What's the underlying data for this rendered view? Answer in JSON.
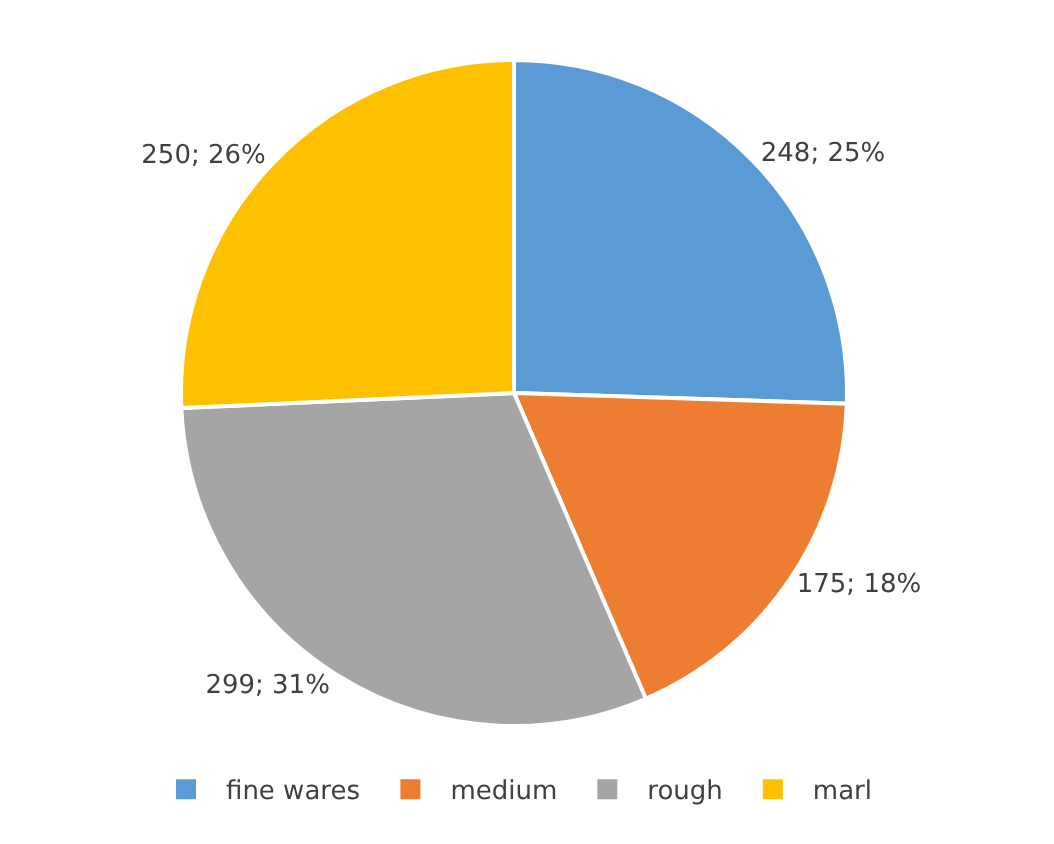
{
  "chart_data": {
    "type": "pie",
    "categories": [
      "fine wares",
      "medium",
      "rough",
      "marl"
    ],
    "values": [
      248,
      175,
      299,
      250
    ],
    "colors": [
      "#5b9bd5",
      "#ed7d31",
      "#a5a5a5",
      "#ffc000"
    ],
    "value_labels": [
      "248; 25%",
      "175; 18%",
      "299; 31%",
      "250; 26%"
    ],
    "legend": "bottom"
  }
}
